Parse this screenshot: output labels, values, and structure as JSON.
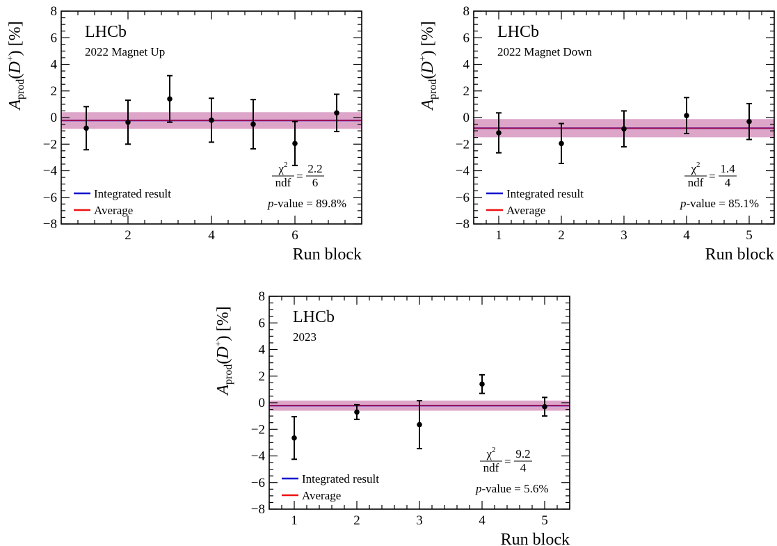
{
  "colors": {
    "integrated": "#0000cc",
    "average": "#ee1111",
    "band_integrated": "#8080ff",
    "band_average": "#ff9a9a",
    "points": "#000000"
  },
  "chart_data": [
    {
      "type": "scatter",
      "experiment": "LHCb",
      "label": "2022 Magnet Up",
      "xlabel": "Run block",
      "ylabel_main": "A",
      "ylabel_sub": "prod",
      "ylabel_paren_open": "(",
      "ylabel_particle": "D",
      "ylabel_sup": "+",
      "ylabel_tail": ") [%]",
      "xlim": [
        0.4,
        7.6
      ],
      "ylim": [
        -8,
        8
      ],
      "xticks": [
        2,
        4,
        6
      ],
      "xtick_labels": [
        "2",
        "4",
        "6"
      ],
      "yticks": [
        -8,
        -6,
        -4,
        -2,
        0,
        2,
        4,
        6,
        8
      ],
      "ytick_labels": [
        "−8",
        "−6",
        "−4",
        "−2",
        "0",
        "2",
        "4",
        "6",
        "8"
      ],
      "x": [
        1,
        2,
        3,
        4,
        5,
        6,
        7
      ],
      "y": [
        -0.8,
        -0.35,
        1.4,
        -0.2,
        -0.5,
        -1.95,
        0.35
      ],
      "yerr": [
        1.62,
        1.65,
        1.75,
        1.65,
        1.85,
        1.65,
        1.4
      ],
      "integrated": {
        "value": -0.22,
        "error": 0.62
      },
      "average": {
        "value": -0.22,
        "error": 0.62
      },
      "legend": [
        "Integrated result",
        "Average"
      ],
      "chi2_label": "χ",
      "chi2_sup": "2",
      "ndf_label": "ndf",
      "chi2": "2.2",
      "ndf": "6",
      "pvalue_p": "p",
      "pvalue_rest": "-value = 89.8%"
    },
    {
      "type": "scatter",
      "experiment": "LHCb",
      "label": "2022 Magnet Down",
      "xlabel": "Run block",
      "ylabel_main": "A",
      "ylabel_sub": "prod",
      "ylabel_paren_open": "(",
      "ylabel_particle": "D",
      "ylabel_sup": "+",
      "ylabel_tail": ") [%]",
      "xlim": [
        0.6,
        5.4
      ],
      "ylim": [
        -8,
        8
      ],
      "xticks": [
        1,
        2,
        3,
        4,
        5
      ],
      "xtick_labels": [
        "1",
        "2",
        "3",
        "4",
        "5"
      ],
      "yticks": [
        -8,
        -6,
        -4,
        -2,
        0,
        2,
        4,
        6,
        8
      ],
      "ytick_labels": [
        "−8",
        "−6",
        "−4",
        "−2",
        "0",
        "2",
        "4",
        "6",
        "8"
      ],
      "x": [
        1,
        2,
        3,
        4,
        5
      ],
      "y": [
        -1.15,
        -1.95,
        -0.85,
        0.15,
        -0.3
      ],
      "yerr": [
        1.5,
        1.5,
        1.35,
        1.35,
        1.35
      ],
      "integrated": {
        "value": -0.8,
        "error": 0.68
      },
      "average": {
        "value": -0.8,
        "error": 0.68
      },
      "legend": [
        "Integrated result",
        "Average"
      ],
      "chi2_label": "χ",
      "chi2_sup": "2",
      "ndf_label": "ndf",
      "chi2": "1.4",
      "ndf": "4",
      "pvalue_p": "p",
      "pvalue_rest": "-value = 85.1%"
    },
    {
      "type": "scatter",
      "experiment": "LHCb",
      "label": "2023",
      "xlabel": "Run block",
      "ylabel_main": "A",
      "ylabel_sub": "prod",
      "ylabel_paren_open": "(",
      "ylabel_particle": "D",
      "ylabel_sup": "+",
      "ylabel_tail": ") [%]",
      "xlim": [
        0.6,
        5.4
      ],
      "ylim": [
        -8,
        8
      ],
      "xticks": [
        1,
        2,
        3,
        4,
        5
      ],
      "xtick_labels": [
        "1",
        "2",
        "3",
        "4",
        "5"
      ],
      "yticks": [
        -8,
        -6,
        -4,
        -2,
        0,
        2,
        4,
        6,
        8
      ],
      "ytick_labels": [
        "−8",
        "−6",
        "−4",
        "−2",
        "0",
        "2",
        "4",
        "6",
        "8"
      ],
      "x": [
        1,
        2,
        3,
        4,
        5
      ],
      "y": [
        -2.65,
        -0.7,
        -1.65,
        1.4,
        -0.3
      ],
      "yerr": [
        1.6,
        0.55,
        1.8,
        0.7,
        0.7
      ],
      "integrated": {
        "value": -0.22,
        "error": 0.38
      },
      "average": {
        "value": -0.22,
        "error": 0.38
      },
      "legend": [
        "Integrated result",
        "Average"
      ],
      "chi2_label": "χ",
      "chi2_sup": "2",
      "ndf_label": "ndf",
      "chi2": "9.2",
      "ndf": "4",
      "pvalue_p": "p",
      "pvalue_rest": "-value = 5.6%"
    }
  ]
}
